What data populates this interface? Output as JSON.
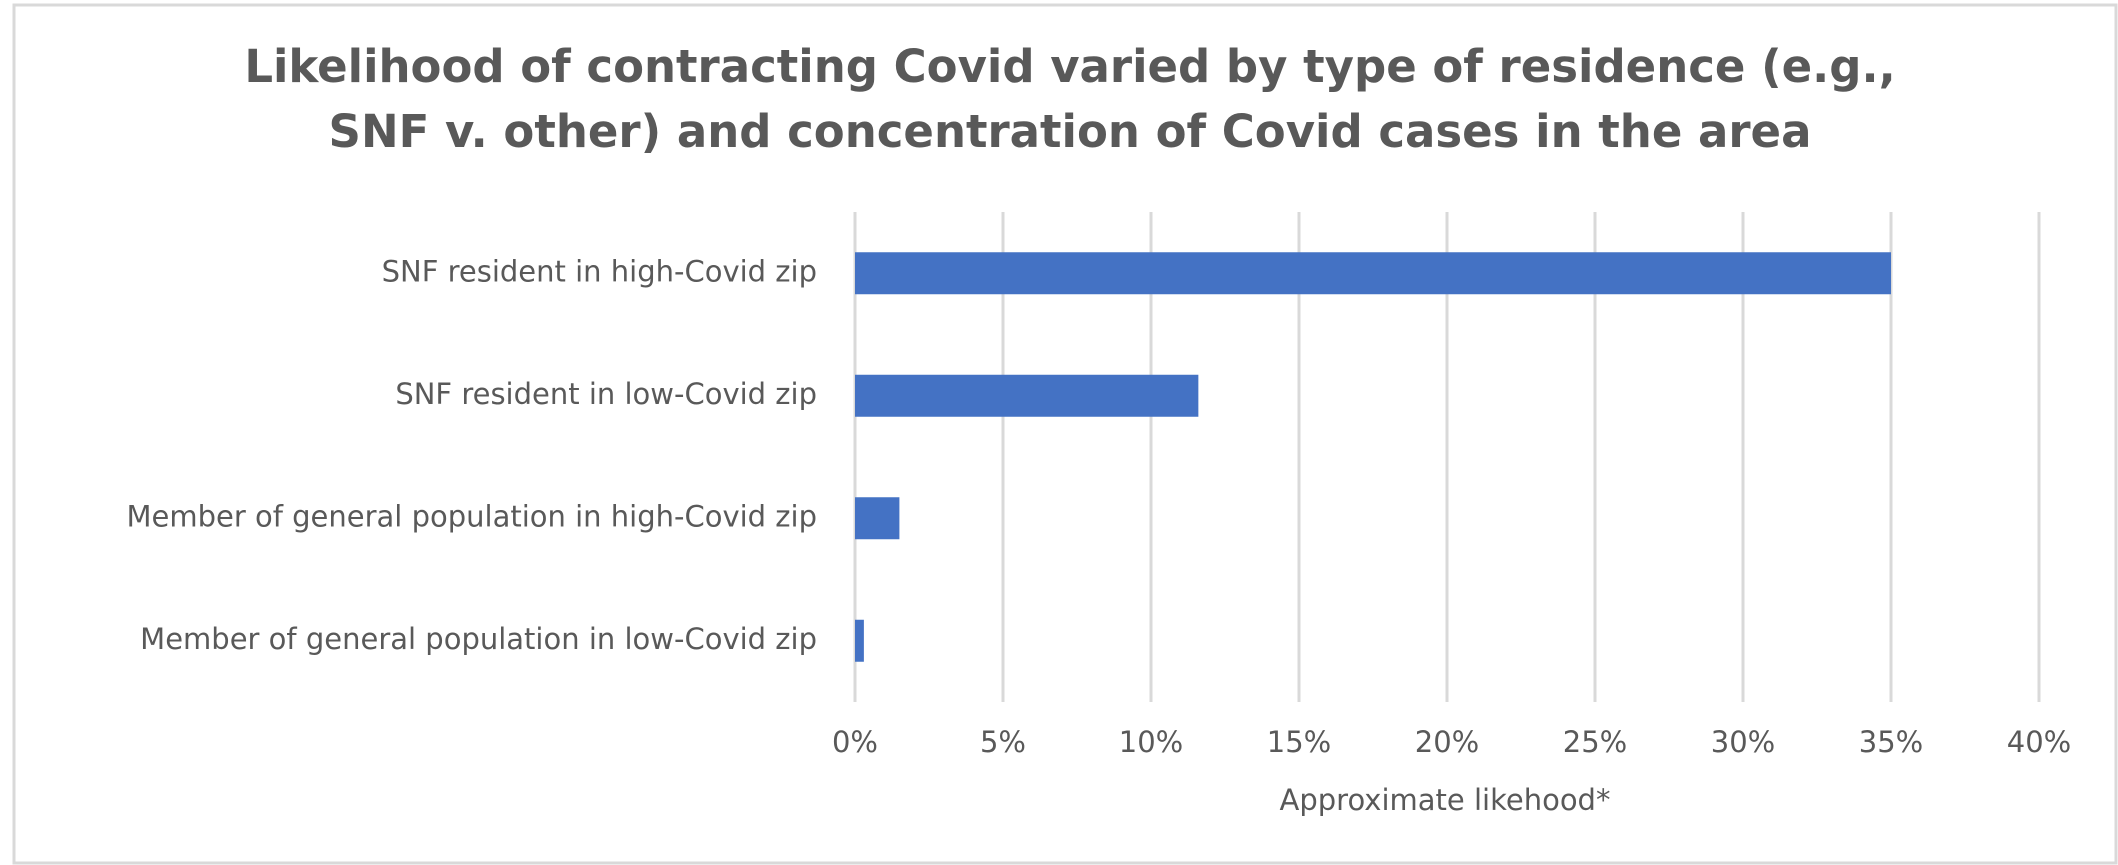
{
  "chart_data": {
    "type": "bar",
    "orientation": "horizontal",
    "title": [
      "Likelihood of contracting Covid varied by type of residence (e.g.,",
      "SNF v. other) and concentration of Covid cases in the area"
    ],
    "x_label": "Approximate likehood*",
    "categories": [
      "SNF resident in high-Covid zip",
      "SNF resident in low-Covid zip",
      "Member of general population in high-Covid zip",
      "Member of general population in low-Covid zip"
    ],
    "values": [
      35,
      11.6,
      1.5,
      0.3
    ],
    "color": "#4472c4",
    "xlim": [
      0,
      40
    ],
    "xticks": [
      {
        "value": 0,
        "label": "0%"
      },
      {
        "value": 5,
        "label": "5%"
      },
      {
        "value": 10,
        "label": "10%"
      },
      {
        "value": 15,
        "label": "15%"
      },
      {
        "value": 20,
        "label": "20%"
      },
      {
        "value": 25,
        "label": "25%"
      },
      {
        "value": 30,
        "label": "30%"
      },
      {
        "value": 35,
        "label": "35%"
      },
      {
        "value": 40,
        "label": "40%"
      }
    ],
    "grid": true
  }
}
